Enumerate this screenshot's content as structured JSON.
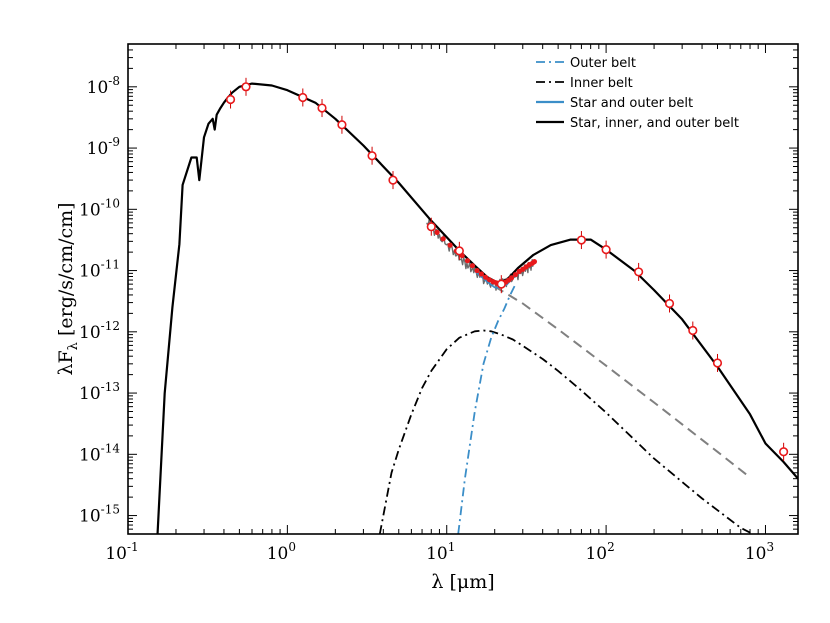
{
  "chart_data": {
    "type": "line",
    "title": "",
    "xlabel": "λ [μm]",
    "ylabel": "λF_λ [erg/s/cm/cm]",
    "xscale": "log",
    "yscale": "log",
    "xlim": [
      0.1,
      1600
    ],
    "ylim": [
      5e-16,
      5e-08
    ],
    "x_ticks": [
      {
        "base": "10",
        "exp": "-1",
        "value": 0.1
      },
      {
        "base": "10",
        "exp": "0",
        "value": 1
      },
      {
        "base": "10",
        "exp": "1",
        "value": 10
      },
      {
        "base": "10",
        "exp": "2",
        "value": 100
      },
      {
        "base": "10",
        "exp": "3",
        "value": 1000
      }
    ],
    "y_ticks": [
      {
        "base": "10",
        "exp": "-8",
        "value": 1e-08
      },
      {
        "base": "10",
        "exp": "-9",
        "value": 1e-09
      },
      {
        "base": "10",
        "exp": "-10",
        "value": 1e-10
      },
      {
        "base": "10",
        "exp": "-11",
        "value": 1e-11
      },
      {
        "base": "10",
        "exp": "-12",
        "value": 1e-12
      },
      {
        "base": "10",
        "exp": "-13",
        "value": 1e-13
      },
      {
        "base": "10",
        "exp": "-14",
        "value": 1e-14
      },
      {
        "base": "10",
        "exp": "-15",
        "value": 1e-15
      }
    ],
    "legend_position": "top-right",
    "legend": [
      {
        "label": "Outer belt",
        "style": "dashdot",
        "color": "#3b8ec8"
      },
      {
        "label": "Inner belt",
        "style": "dashdot",
        "color": "#000000"
      },
      {
        "label": "Star and outer belt",
        "style": "solid",
        "color": "#3b8ec8"
      },
      {
        "label": "Star, inner, and outer belt",
        "style": "solid",
        "color": "#000000"
      }
    ],
    "series": [
      {
        "name": "Star, inner, and outer belt",
        "style": "solid",
        "color": "#000000",
        "width": 2.2,
        "x": [
          0.153,
          0.17,
          0.19,
          0.21,
          0.22,
          0.25,
          0.27,
          0.28,
          0.3,
          0.32,
          0.34,
          0.35,
          0.36,
          0.38,
          0.4,
          0.42,
          0.45,
          0.5,
          0.6,
          0.8,
          1.0,
          1.5,
          2.0,
          3.0,
          5.0,
          8.0,
          12.0,
          15.0,
          18.0,
          21.0,
          24.0,
          28.0,
          35.0,
          45.0,
          60.0,
          80.0,
          100.0,
          150.0,
          200.0,
          300.0,
          500.0,
          800.0,
          1000.0,
          1300.0,
          1600.0
        ],
        "y": [
          4.5e-16,
          1e-13,
          2.5e-12,
          2.7e-11,
          2.5e-10,
          7e-10,
          7e-10,
          3e-10,
          1.5e-09,
          2.5e-09,
          3e-09,
          2e-09,
          3.5e-09,
          4.5e-09,
          5.5e-09,
          6.5e-09,
          8e-09,
          1e-08,
          1.13e-08,
          1.05e-08,
          8.8e-09,
          5.5e-09,
          3e-09,
          1.1e-09,
          2.7e-10,
          6.5e-11,
          2.1e-11,
          1.2e-11,
          7.8e-12,
          6.3e-12,
          7.2e-12,
          1.1e-11,
          1.8e-11,
          2.6e-11,
          3.2e-11,
          3.2e-11,
          2.2e-11,
          1e-11,
          4.8e-12,
          1.6e-12,
          2.7e-13,
          4.5e-14,
          1.5e-14,
          7.5e-15,
          4e-15
        ]
      },
      {
        "name": "Star and outer belt",
        "style": "solid",
        "color": "#3b8ec8",
        "width": 1.6,
        "x": [
          15.0,
          18.0,
          20.0,
          22.0,
          24.0,
          27.0
        ],
        "y": [
          9.8e-12,
          6.5e-12,
          5.3e-12,
          5.2e-12,
          6e-12,
          8.4e-12
        ]
      },
      {
        "name": "Stellar photosphere",
        "style": "dashed",
        "color": "#808080",
        "width": 2,
        "x": [
          20.0,
          30.0,
          50.0,
          100.0,
          200.0,
          500.0,
          800.0
        ],
        "y": [
          5.5e-12,
          2.9e-12,
          1.1e-12,
          2.8e-13,
          7e-14,
          1.1e-14,
          4.2e-15
        ]
      },
      {
        "name": "Outer belt",
        "style": "dashdot",
        "color": "#3b8ec8",
        "width": 1.8,
        "x": [
          11.8,
          13.0,
          15.0,
          17.0,
          19.0,
          21.0,
          23.0,
          25.0,
          27.0
        ],
        "y": [
          5e-16,
          4e-15,
          5e-14,
          3e-13,
          8e-13,
          1.5e-12,
          2.4e-12,
          4e-12,
          6e-12
        ]
      },
      {
        "name": "Inner belt",
        "style": "dashdot",
        "color": "#000000",
        "width": 1.8,
        "x": [
          3.8,
          4.5,
          5.0,
          6.0,
          7.0,
          8.0,
          10.0,
          12.0,
          15.0,
          17.0,
          19.0,
          22.0,
          26.0,
          30.0,
          40.0,
          50.0,
          70.0,
          100.0,
          200.0,
          400.0,
          700.0,
          900.0
        ],
        "y": [
          5e-16,
          5e-15,
          1.2e-14,
          4.5e-14,
          1.2e-13,
          2.3e-13,
          5.2e-13,
          8e-13,
          1.02e-12,
          1.05e-12,
          1.02e-12,
          9e-13,
          7.5e-13,
          5.9e-13,
          3.6e-13,
          2.3e-13,
          1.1e-13,
          4.8e-14,
          8.5e-15,
          1.9e-15,
          6.3e-16,
          4.5e-16
        ]
      },
      {
        "name": "Spectrum",
        "style": "noisy",
        "color": "#6b6b6b",
        "width": 1.4,
        "x": [
          7.5,
          9.0,
          11.0,
          13.0,
          15.0,
          18.0,
          21.0,
          24.0,
          28.0,
          32.0,
          35.0
        ],
        "y": [
          6.5e-11,
          3.6e-11,
          2.1e-11,
          1.3e-11,
          1e-11,
          6.5e-12,
          5.8e-12,
          7e-12,
          8.8e-12,
          1.1e-11,
          1.3e-11
        ]
      }
    ],
    "photometry": {
      "x": [
        0.44,
        0.55,
        1.25,
        1.65,
        2.2,
        3.4,
        4.6,
        8.0,
        12.0,
        22.0,
        70.0,
        100.0,
        160.0,
        250.0,
        350.0,
        500.0,
        1300.0
      ],
      "y": [
        6.2e-09,
        1e-08,
        6.7e-09,
        4.5e-09,
        2.4e-09,
        7.5e-10,
        3e-10,
        5.2e-11,
        2.1e-11,
        6e-12,
        3.15e-11,
        2.2e-11,
        9.5e-12,
        2.9e-12,
        1.05e-12,
        3.1e-13,
        1.1e-14
      ]
    },
    "spectrum_marks": {
      "x": [
        7.9,
        8.7,
        9.5,
        10.5,
        11.5,
        12.5,
        13.5,
        14.5,
        15.5,
        16.5,
        17.5,
        18.5,
        19.5,
        20.5,
        21.5,
        22.5,
        23.5,
        24.5,
        25.5,
        27.0,
        28.5,
        30.0,
        31.5,
        33.0,
        34.5,
        35.5
      ],
      "y": [
        5e-11,
        4.2e-11,
        3.3e-11,
        2.6e-11,
        2.1e-11,
        1.75e-11,
        1.45e-11,
        1.2e-11,
        1e-11,
        8.8e-12,
        7.8e-12,
        7.1e-12,
        6.6e-12,
        6.3e-12,
        6.1e-12,
        6.2e-12,
        6.5e-12,
        7e-12,
        7.6e-12,
        8.6e-12,
        9.7e-12,
        1.05e-11,
        1.15e-11,
        1.25e-11,
        1.32e-11,
        1.4e-11
      ]
    }
  }
}
